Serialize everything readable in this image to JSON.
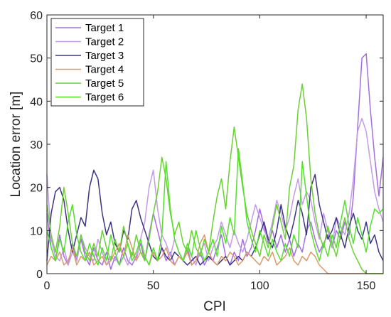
{
  "chart_data": {
    "type": "line",
    "title": "",
    "xlabel": "CPI",
    "ylabel": "Location error [m]",
    "xlim": [
      0,
      158
    ],
    "ylim": [
      0,
      60
    ],
    "xticks": [
      0,
      50,
      100,
      150
    ],
    "yticks": [
      0,
      10,
      20,
      30,
      40,
      50,
      60
    ],
    "grid": false,
    "legend_position": "top-left",
    "series": [
      {
        "name": "Target 1",
        "color": "#a56ee0",
        "x": [
          0,
          2,
          4,
          6,
          8,
          10,
          12,
          14,
          16,
          18,
          20,
          22,
          24,
          26,
          28,
          30,
          32,
          34,
          36,
          38,
          40,
          42,
          44,
          46,
          48,
          50,
          52,
          54,
          56,
          58,
          60,
          62,
          64,
          66,
          68,
          70,
          72,
          74,
          76,
          78,
          80,
          82,
          84,
          86,
          88,
          90,
          92,
          94,
          96,
          98,
          100,
          102,
          104,
          106,
          108,
          110,
          112,
          114,
          116,
          118,
          120,
          122,
          124,
          126,
          128,
          130,
          132,
          134,
          136,
          138,
          140,
          142,
          144,
          146,
          148,
          150,
          152,
          154,
          156,
          158
        ],
        "y": [
          14,
          6,
          3,
          9,
          4,
          2,
          7,
          3,
          8,
          4,
          2,
          6,
          3,
          2,
          5,
          1,
          4,
          2,
          6,
          3,
          2,
          4,
          7,
          3,
          9,
          14,
          10,
          6,
          3,
          5,
          2,
          4,
          3,
          6,
          2,
          3,
          5,
          2,
          4,
          3,
          6,
          9,
          4,
          2,
          5,
          3,
          8,
          4,
          6,
          10,
          15,
          11,
          7,
          10,
          6,
          9,
          5,
          8,
          4,
          7,
          5,
          10,
          12,
          8,
          5,
          7,
          9,
          6,
          10,
          8,
          12,
          9,
          18,
          34,
          50,
          51,
          38,
          27,
          18,
          27
        ]
      },
      {
        "name": "Target 2",
        "color": "#c39be6",
        "x": [
          0,
          2,
          4,
          6,
          8,
          10,
          12,
          14,
          16,
          18,
          20,
          22,
          24,
          26,
          28,
          30,
          32,
          34,
          36,
          38,
          40,
          42,
          44,
          46,
          48,
          50,
          52,
          54,
          56,
          58,
          60,
          62,
          64,
          66,
          68,
          70,
          72,
          74,
          76,
          78,
          80,
          82,
          84,
          86,
          88,
          90,
          92,
          94,
          96,
          98,
          100,
          102,
          104,
          106,
          108,
          110,
          112,
          114,
          116,
          118,
          120,
          122,
          124,
          126,
          128,
          130,
          132,
          134,
          136,
          138,
          140,
          142,
          144,
          146,
          148,
          150,
          152,
          154,
          156,
          158
        ],
        "y": [
          23,
          8,
          4,
          3,
          6,
          2,
          5,
          3,
          9,
          6,
          4,
          3,
          8,
          5,
          2,
          4,
          3,
          6,
          4,
          2,
          5,
          3,
          8,
          12,
          20,
          24,
          15,
          9,
          7,
          4,
          8,
          5,
          3,
          6,
          4,
          2,
          5,
          7,
          3,
          6,
          8,
          12,
          9,
          6,
          10,
          7,
          5,
          8,
          12,
          16,
          13,
          10,
          8,
          12,
          17,
          14,
          10,
          13,
          18,
          22,
          16,
          19,
          17,
          12,
          8,
          14,
          10,
          6,
          13,
          11,
          9,
          14,
          22,
          33,
          36,
          33,
          26,
          19,
          15,
          12
        ]
      },
      {
        "name": "Target 3",
        "color": "#3c3580",
        "x": [
          0,
          2,
          4,
          6,
          8,
          10,
          12,
          14,
          16,
          18,
          20,
          22,
          24,
          26,
          28,
          30,
          32,
          34,
          36,
          38,
          40,
          42,
          44,
          46,
          48,
          50,
          52,
          54,
          56,
          58,
          60,
          62,
          64,
          66,
          68,
          70,
          72,
          74,
          76,
          78,
          80,
          82,
          84,
          86,
          88,
          90,
          92,
          94,
          96,
          98,
          100,
          102,
          104,
          106,
          108,
          110,
          112,
          114,
          116,
          118,
          120,
          122,
          124,
          126,
          128,
          130,
          132,
          134,
          136,
          138,
          140,
          142,
          144,
          146,
          148,
          150,
          152,
          154,
          156,
          158
        ],
        "y": [
          3,
          14,
          19,
          20,
          17,
          10,
          5,
          9,
          13,
          11,
          20,
          24,
          22,
          14,
          9,
          12,
          7,
          5,
          10,
          8,
          15,
          17,
          13,
          10,
          7,
          4,
          3,
          6,
          4,
          3,
          5,
          4,
          3,
          2,
          3,
          4,
          2,
          3,
          4,
          3,
          2,
          3,
          4,
          2,
          3,
          4,
          3,
          5,
          4,
          6,
          9,
          12,
          8,
          6,
          10,
          16,
          11,
          8,
          12,
          17,
          14,
          9,
          20,
          23,
          16,
          12,
          8,
          10,
          13,
          9,
          6,
          11,
          14,
          10,
          8,
          12,
          7,
          9,
          5,
          3
        ]
      },
      {
        "name": "Target 4",
        "color": "#d99a6c",
        "x": [
          0,
          2,
          4,
          6,
          8,
          10,
          12,
          14,
          16,
          18,
          20,
          22,
          24,
          26,
          28,
          30,
          32,
          34,
          36,
          38,
          40,
          42,
          44,
          46,
          48,
          50,
          52,
          54,
          56,
          58,
          60,
          62,
          64,
          66,
          68,
          70,
          72,
          74,
          76,
          78,
          80,
          82,
          84,
          86,
          88,
          90,
          92,
          94,
          96,
          98,
          100,
          102,
          104,
          106,
          108,
          110,
          112,
          114,
          116,
          118,
          120,
          122,
          124,
          126,
          128,
          130,
          132,
          134,
          136,
          138,
          140,
          142,
          144,
          146,
          148,
          150,
          152,
          154,
          156,
          158
        ],
        "y": [
          2,
          4,
          3,
          5,
          2,
          3,
          6,
          2,
          4,
          3,
          5,
          2,
          3,
          4,
          2,
          3,
          5,
          7,
          4,
          9,
          6,
          3,
          5,
          4,
          2,
          5,
          3,
          4,
          6,
          3,
          2,
          4,
          3,
          5,
          2,
          3,
          7,
          9,
          5,
          3,
          2,
          4,
          3,
          5,
          4,
          2,
          3,
          5,
          4,
          3,
          2,
          4,
          3,
          5,
          2,
          3,
          4,
          6,
          3,
          2,
          4,
          3,
          5,
          4,
          2,
          1,
          0,
          0,
          0,
          0,
          0,
          0,
          0,
          0,
          0,
          0,
          0,
          0,
          0,
          0
        ]
      },
      {
        "name": "Target 5",
        "color": "#6ccf34",
        "x": [
          0,
          2,
          4,
          6,
          8,
          10,
          12,
          14,
          16,
          18,
          20,
          22,
          24,
          26,
          28,
          30,
          32,
          34,
          36,
          38,
          40,
          42,
          44,
          46,
          48,
          50,
          52,
          54,
          56,
          58,
          60,
          62,
          64,
          66,
          68,
          70,
          72,
          74,
          76,
          78,
          80,
          82,
          84,
          86,
          88,
          90,
          92,
          94,
          96,
          98,
          100,
          102,
          104,
          106,
          108,
          110,
          112,
          114,
          116,
          118,
          120,
          122,
          124,
          126,
          128,
          130,
          132,
          134,
          136,
          138,
          140,
          142,
          144,
          146,
          148,
          150,
          152,
          154,
          156,
          158
        ],
        "y": [
          16,
          9,
          5,
          11,
          20,
          14,
          7,
          4,
          9,
          5,
          3,
          7,
          4,
          10,
          6,
          3,
          8,
          5,
          11,
          7,
          4,
          9,
          5,
          3,
          8,
          14,
          19,
          27,
          22,
          14,
          9,
          12,
          7,
          5,
          10,
          6,
          4,
          8,
          5,
          12,
          18,
          22,
          15,
          26,
          34,
          27,
          20,
          14,
          10,
          7,
          4,
          9,
          6,
          11,
          16,
          12,
          8,
          20,
          25,
          38,
          44,
          36,
          22,
          14,
          9,
          6,
          11,
          7,
          4,
          9,
          13,
          8,
          5,
          3,
          1,
          0,
          0,
          0,
          0,
          0
        ]
      },
      {
        "name": "Target 6",
        "color": "#55e02c",
        "x": [
          0,
          2,
          4,
          6,
          8,
          10,
          12,
          14,
          16,
          18,
          20,
          22,
          24,
          26,
          28,
          30,
          32,
          34,
          36,
          38,
          40,
          42,
          44,
          46,
          48,
          50,
          52,
          54,
          56,
          58,
          60,
          62,
          64,
          66,
          68,
          70,
          72,
          74,
          76,
          78,
          80,
          82,
          84,
          86,
          88,
          90,
          92,
          94,
          96,
          98,
          100,
          102,
          104,
          106,
          108,
          110,
          112,
          114,
          116,
          118,
          120,
          122,
          124,
          126,
          128,
          130,
          132,
          134,
          136,
          138,
          140,
          142,
          144,
          146,
          148,
          150,
          152,
          154,
          156,
          158
        ],
        "y": [
          10,
          6,
          3,
          8,
          5,
          12,
          16,
          9,
          5,
          3,
          7,
          4,
          2,
          6,
          3,
          9,
          5,
          2,
          4,
          7,
          3,
          5,
          8,
          4,
          2,
          6,
          3,
          9,
          26,
          15,
          8,
          5,
          3,
          7,
          4,
          10,
          6,
          3,
          5,
          8,
          4,
          11,
          7,
          13,
          9,
          29,
          21,
          12,
          8,
          5,
          10,
          7,
          4,
          8,
          5,
          3,
          7,
          4,
          9,
          6,
          26,
          18,
          10,
          6,
          3,
          7,
          4,
          9,
          6,
          12,
          17,
          11,
          7,
          13,
          9,
          5,
          11,
          15,
          14,
          15
        ]
      }
    ]
  }
}
